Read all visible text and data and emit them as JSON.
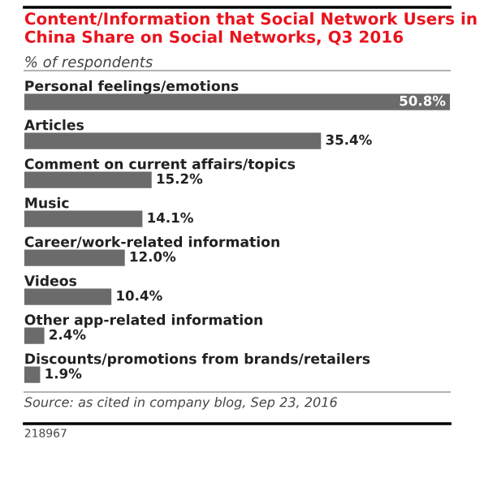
{
  "chart_data": {
    "type": "bar",
    "orientation": "horizontal",
    "title": "Content/Information that Social Network Users in China Share on Social Networks, Q3 2016",
    "subtitle": "% of respondents",
    "categories": [
      "Personal feelings/emotions",
      "Articles",
      "Comment on current affairs/topics",
      "Music",
      "Career/work-related information",
      "Videos",
      "Other app-related information",
      "Discounts/promotions from brands/retailers"
    ],
    "values": [
      50.8,
      35.4,
      15.2,
      14.1,
      12.0,
      10.4,
      2.4,
      1.9
    ],
    "value_labels": [
      "50.8%",
      "35.4%",
      "15.2%",
      "14.1%",
      "12.0%",
      "10.4%",
      "2.4%",
      "1.9%"
    ],
    "color": "#6b6b6b",
    "annotations": [
      "Source: as cited in company blog, Sep 23, 2016",
      "218967"
    ]
  }
}
